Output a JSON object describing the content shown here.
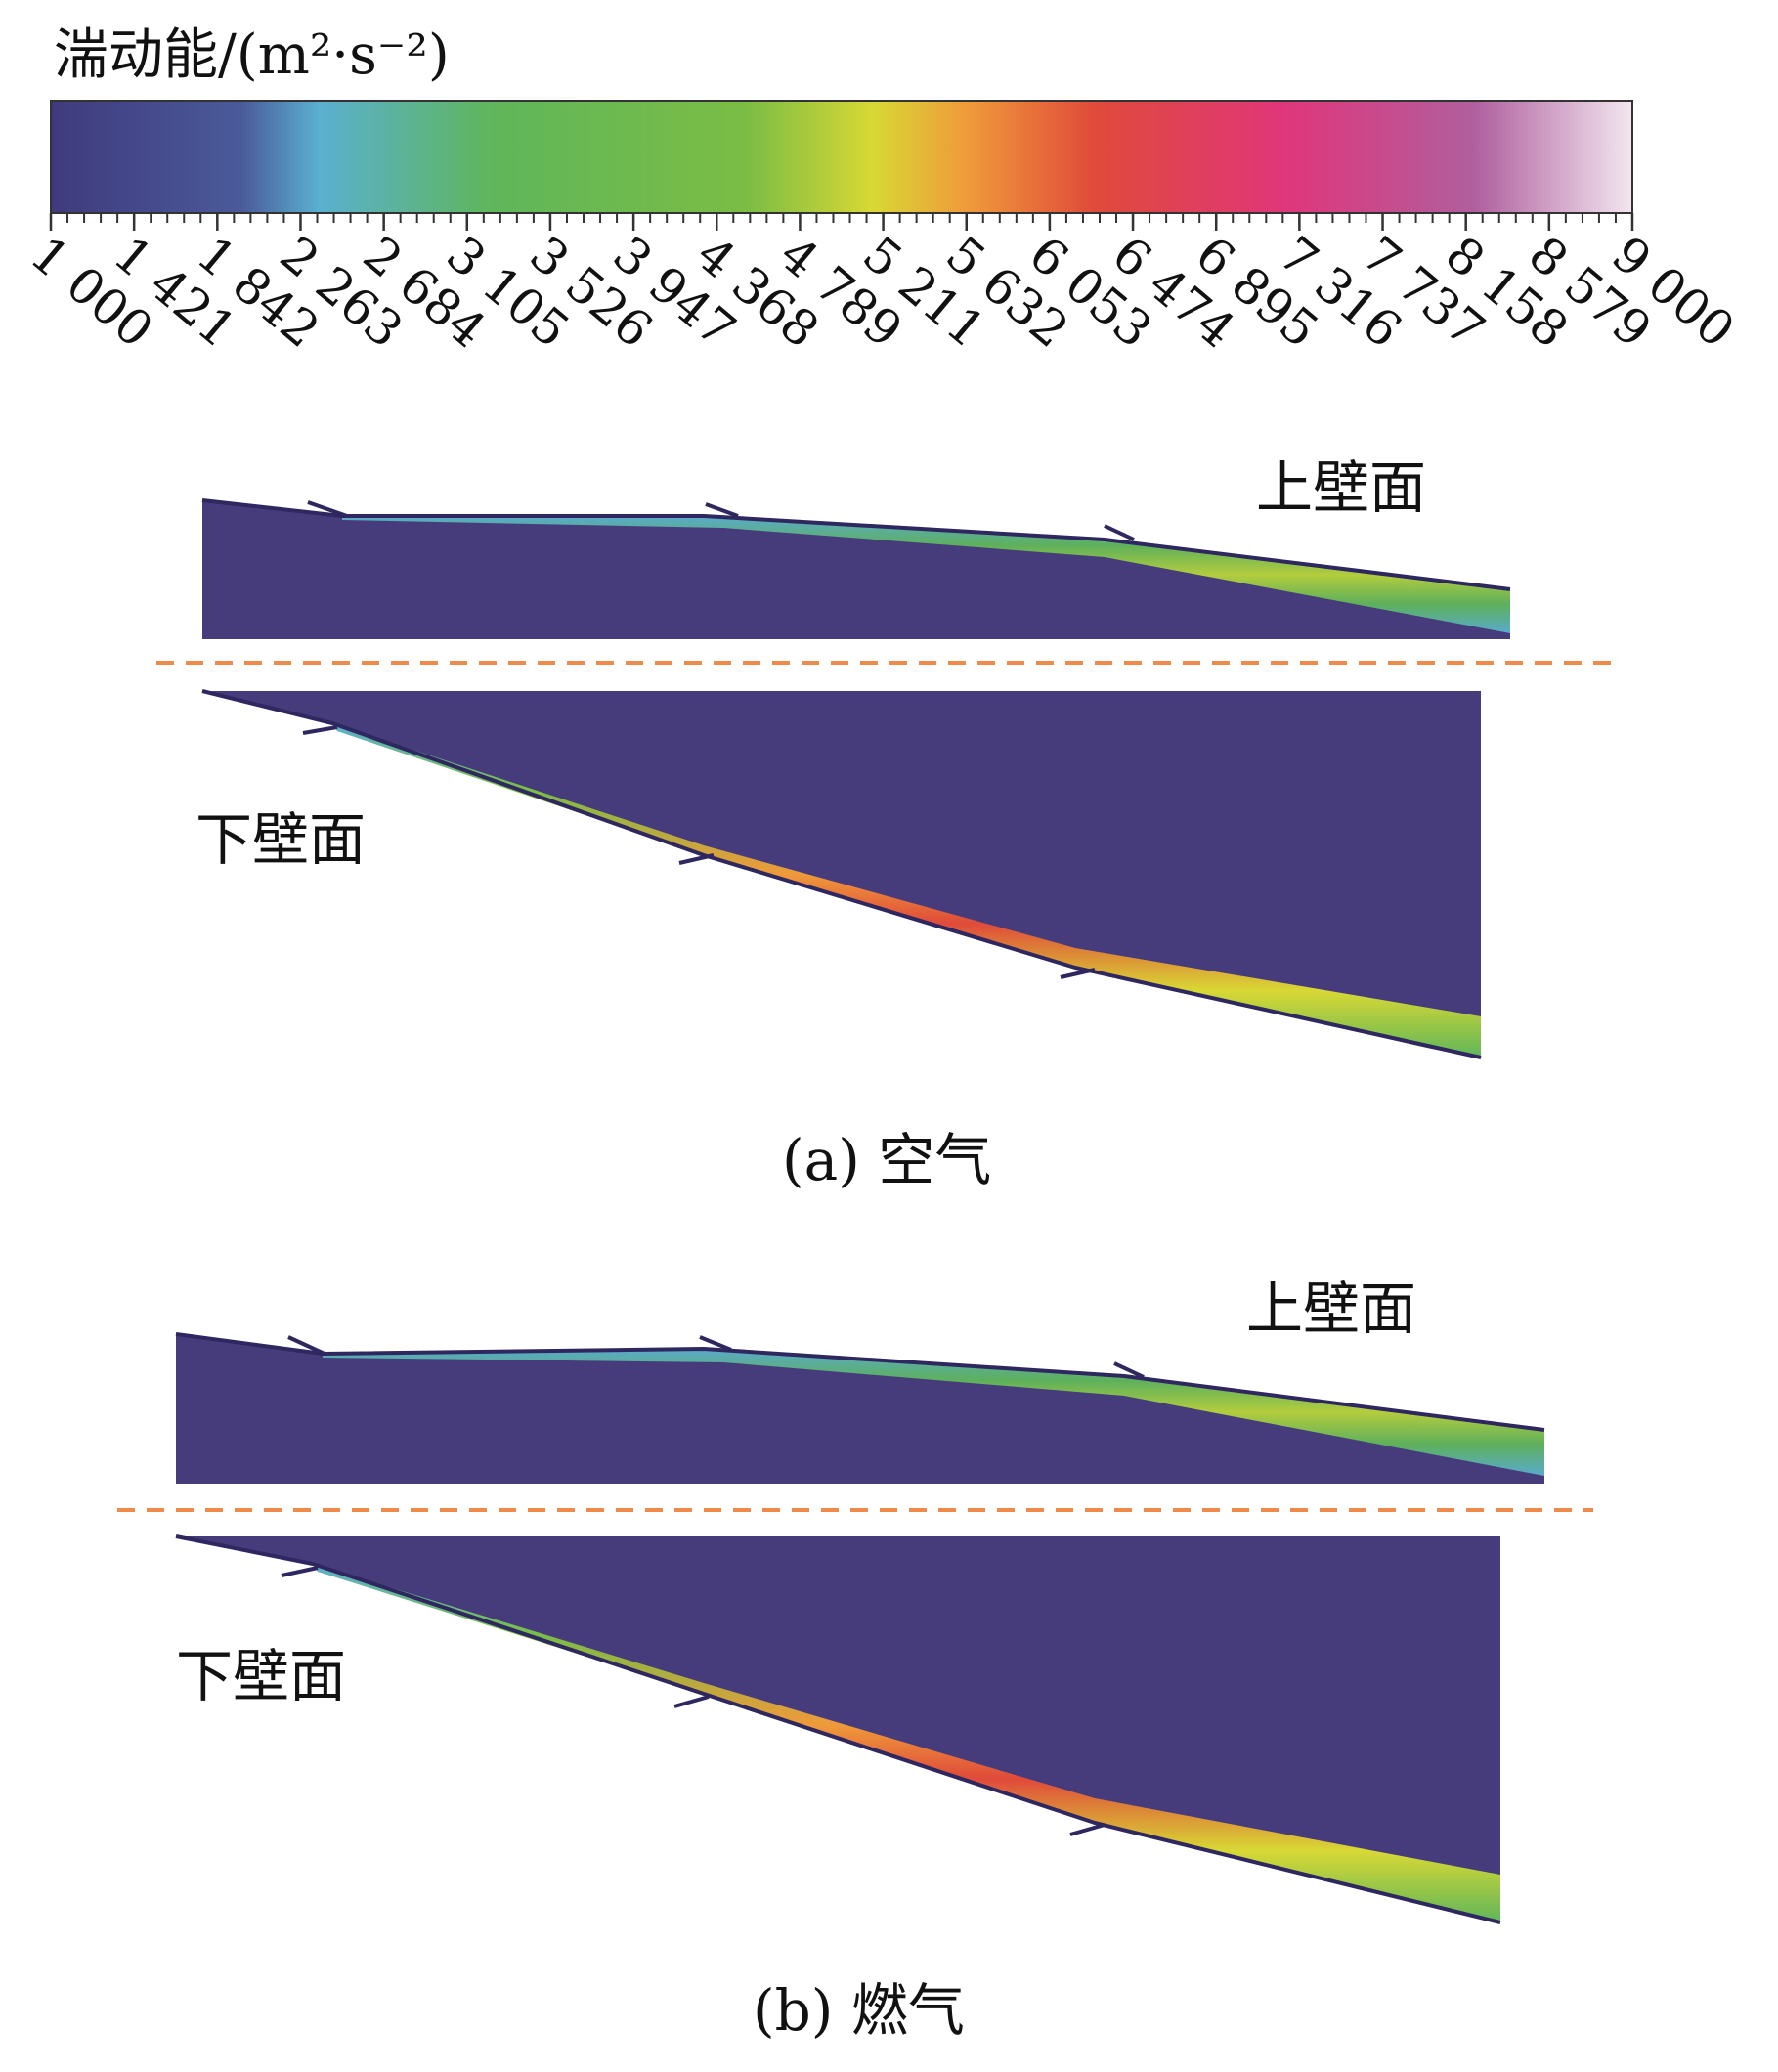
{
  "colorbar": {
    "title": "湍动能/(m²·s⁻²)",
    "ticks": [
      "1 000",
      "1 421",
      "1 842",
      "2 263",
      "2 684",
      "3 105",
      "3 526",
      "3 947",
      "4 368",
      "4 789",
      "5 211",
      "5 632",
      "6 053",
      "6 474",
      "6 895",
      "7 316",
      "7 737",
      "8 158",
      "8 579",
      "9 000"
    ],
    "stops": [
      "#3f3a7d",
      "#4a5a9a",
      "#5ab0d0",
      "#5fb65a",
      "#7bbd45",
      "#d8d834",
      "#ef9a3a",
      "#e04a3a",
      "#e0367a",
      "#b05f9e",
      "#f3e6f0"
    ]
  },
  "colors": {
    "background": "#463c7c",
    "divider": "#f08a4b",
    "wall": "#2e2760"
  },
  "panels": [
    {
      "upper_label": "上壁面",
      "lower_label": "下壁面",
      "caption": "(a) 空气"
    },
    {
      "upper_label": "上壁面",
      "lower_label": "下壁面",
      "caption": "(b) 燃气"
    }
  ]
}
